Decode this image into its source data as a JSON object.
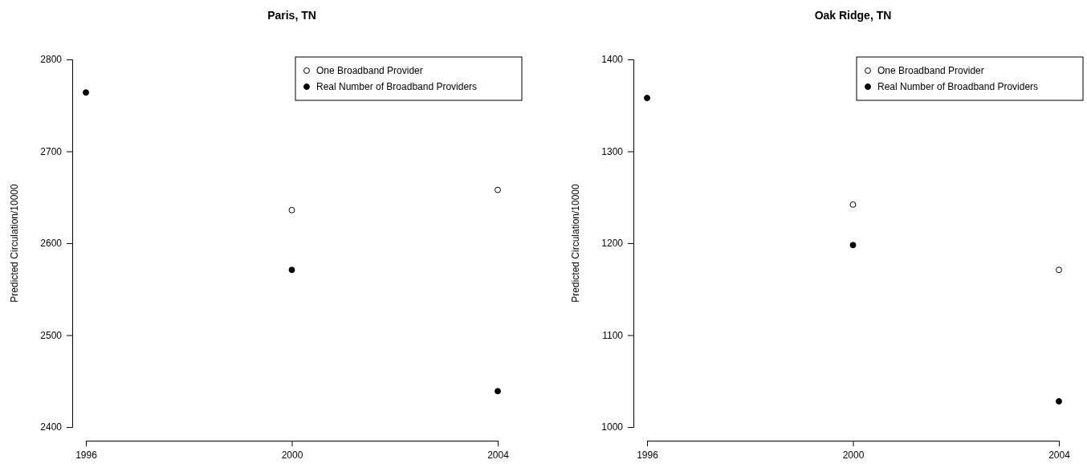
{
  "chart_data": [
    {
      "type": "scatter",
      "title": "Paris, TN",
      "ylabel": "Predicted Circulation/10000",
      "x": [
        1996,
        2000,
        2004
      ],
      "xlim": [
        1996,
        2004
      ],
      "xticks": [
        1996,
        2000,
        2004
      ],
      "ylim": [
        2400,
        2800
      ],
      "yticks": [
        2400,
        2500,
        2600,
        2700,
        2800
      ],
      "marker": "circle",
      "legend": "top right",
      "grid": false,
      "series": [
        {
          "name": "One Broadband Provider",
          "color": "#ffffff",
          "values": [
            null,
            2636,
            2658
          ]
        },
        {
          "name": "Real Number of Broadband Providers",
          "color": "#000000",
          "values": [
            2764,
            2571,
            2439
          ]
        }
      ]
    },
    {
      "type": "scatter",
      "title": "Oak Ridge, TN",
      "ylabel": "Predicted Circulation/10000",
      "x": [
        1996,
        2000,
        2004
      ],
      "xlim": [
        1996,
        2004
      ],
      "xticks": [
        1996,
        2000,
        2004
      ],
      "ylim": [
        1000,
        1400
      ],
      "yticks": [
        1000,
        1100,
        1200,
        1300,
        1400
      ],
      "marker": "circle",
      "legend": "top right",
      "grid": false,
      "series": [
        {
          "name": "One Broadband Provider",
          "color": "#ffffff",
          "values": [
            null,
            1242,
            1171
          ]
        },
        {
          "name": "Real Number of Broadband Providers",
          "color": "#000000",
          "values": [
            1358,
            1198,
            1028
          ]
        }
      ]
    }
  ]
}
